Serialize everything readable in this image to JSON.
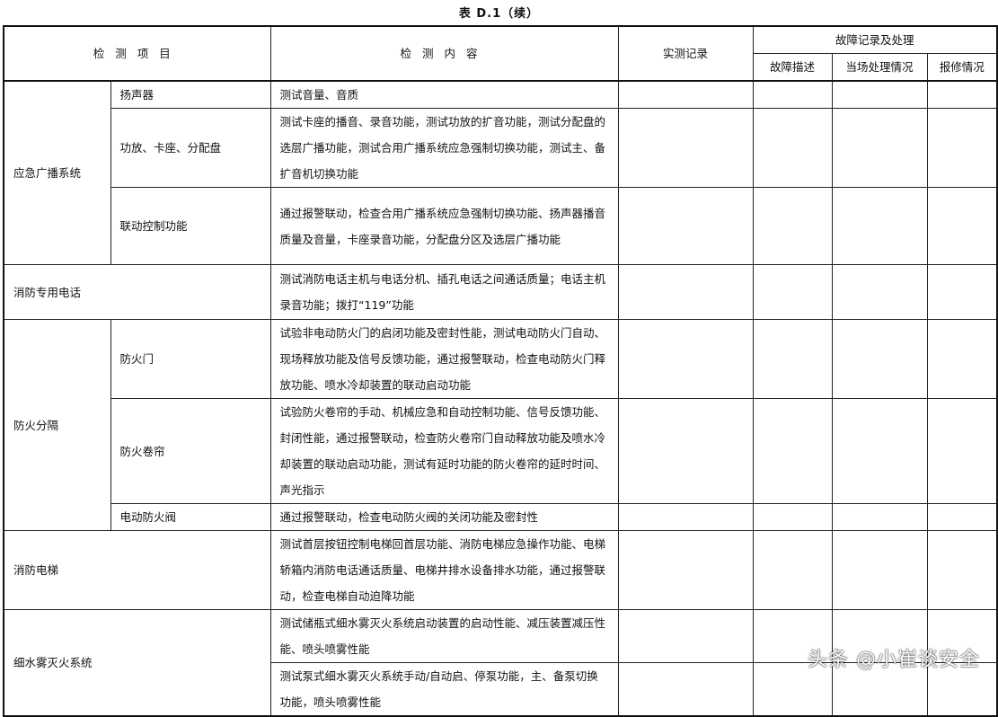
{
  "caption": "表 D.1（续）",
  "header": {
    "item": "检测项目",
    "content": "检测内容",
    "record": "实测记录",
    "fault_group": "故障记录及处理",
    "fault_desc": "故障描述",
    "onsite": "当场处理情况",
    "repair": "报修情况"
  },
  "rows": {
    "broadcast": {
      "label": "应急广播系统",
      "subs": [
        {
          "name": "扬声器",
          "content": "测试音量、音质"
        },
        {
          "name": "功放、卡座、分配盘",
          "content": "测试卡座的播音、录音功能，测试功放的扩音功能，测试分配盘的选层广播功能，测试合用广播系统应急强制切换功能，测试主、备扩音机切换功能"
        },
        {
          "name": "联动控制功能",
          "content": "通过报警联动，检查合用广播系统应急强制切换功能、扬声器播音质量及音量，卡座录音功能，分配盘分区及选层广播功能"
        }
      ]
    },
    "phone": {
      "label": "消防专用电话",
      "content": "测试消防电话主机与电话分机、插孔电话之间通话质量；电话主机录音功能；拨打“119”功能"
    },
    "separation": {
      "label": "防火分隔",
      "subs": [
        {
          "name": "防火门",
          "content": "试验非电动防火门的启闭功能及密封性能，测试电动防火门自动、现场释放功能及信号反馈功能，通过报警联动，检查电动防火门释放功能、喷水冷却装置的联动启动功能"
        },
        {
          "name": "防火卷帘",
          "content": "试验防火卷帘的手动、机械应急和自动控制功能、信号反馈功能、封闭性能，通过报警联动，检查防火卷帘门自动释放功能及喷水冷却装置的联动启动功能，测试有延时功能的防火卷帘的延时时间、声光指示"
        },
        {
          "name": "电动防火阀",
          "content": "通过报警联动，检查电动防火阀的关闭功能及密封性"
        }
      ]
    },
    "elevator": {
      "label": "消防电梯",
      "content": "测试首层按钮控制电梯回首层功能、消防电梯应急操作功能、电梯轿箱内消防电话通话质量、电梯井排水设备排水功能，通过报警联动，检查电梯自动迫降功能"
    },
    "mist": {
      "label": "细水雾灭火系统",
      "contents": [
        "测试储瓶式细水雾灭火系统启动装置的启动性能、减压装置减压性能、喷头喷雾性能",
        "测试泵式细水雾灭火系统手动/自动启、停泵功能，主、备泵切换功能，喷头喷雾性能"
      ]
    }
  },
  "watermark": "头条 @小崔谈安全"
}
